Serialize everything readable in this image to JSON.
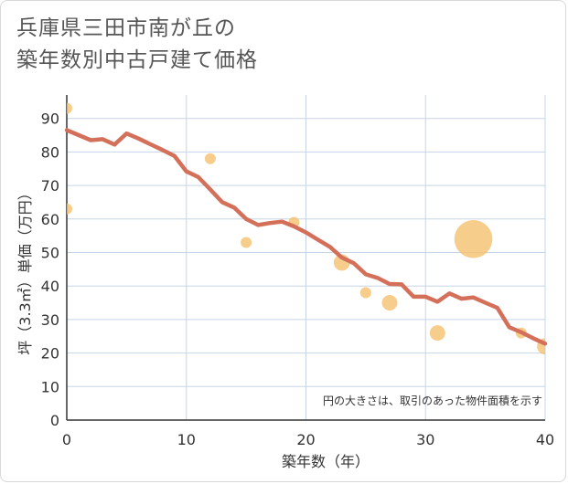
{
  "title_line1": "兵庫県三田市南が丘の",
  "title_line2": "築年数別中古戸建て価格",
  "chart_data": {
    "type": "scatter+line",
    "xlabel": "築年数（年）",
    "ylabel": "坪（3.3㎡）単価（万円）",
    "xlim": [
      0,
      40
    ],
    "ylim": [
      0,
      97
    ],
    "xticks": [
      0,
      10,
      20,
      30,
      40
    ],
    "yticks": [
      0,
      10,
      20,
      30,
      40,
      50,
      60,
      70,
      80,
      90
    ],
    "grid": true,
    "annotation": "円の大きさは、取引のあった物件面積を示す",
    "colors": {
      "line": "#d4705a",
      "bubble": "#f5c16e",
      "grid": "#c5d5e6"
    },
    "series": [
      {
        "name": "trend",
        "kind": "line",
        "points": [
          [
            0,
            86.5
          ],
          [
            1,
            85
          ],
          [
            2,
            83.5
          ],
          [
            3,
            83.8
          ],
          [
            4,
            82.2
          ],
          [
            5,
            85.5
          ],
          [
            6,
            84
          ],
          [
            7,
            82.3
          ],
          [
            8,
            80.6
          ],
          [
            9,
            78.8
          ],
          [
            10,
            74.2
          ],
          [
            11,
            72.5
          ],
          [
            12,
            68.8
          ],
          [
            13,
            65
          ],
          [
            14,
            63.4
          ],
          [
            15,
            60
          ],
          [
            16,
            58.2
          ],
          [
            17,
            58.8
          ],
          [
            18,
            59.2
          ],
          [
            19,
            57.8
          ],
          [
            20,
            56
          ],
          [
            21,
            53.8
          ],
          [
            22,
            51.7
          ],
          [
            23,
            48.5
          ],
          [
            24,
            46.8
          ],
          [
            25,
            43.5
          ],
          [
            26,
            42.4
          ],
          [
            27,
            40.6
          ],
          [
            28,
            40.5
          ],
          [
            29,
            36.8
          ],
          [
            30,
            36.8
          ],
          [
            31,
            35.3
          ],
          [
            32,
            37.8
          ],
          [
            33,
            36.2
          ],
          [
            34,
            36.6
          ],
          [
            35,
            35
          ],
          [
            36,
            33.5
          ],
          [
            37,
            27.7
          ],
          [
            38,
            26.2
          ],
          [
            39,
            24.4
          ],
          [
            40,
            22.8
          ]
        ]
      },
      {
        "name": "transactions",
        "kind": "bubble",
        "points": [
          {
            "x": 0,
            "y": 93,
            "size": 1
          },
          {
            "x": 0,
            "y": 63,
            "size": 1
          },
          {
            "x": 12,
            "y": 78,
            "size": 1
          },
          {
            "x": 15,
            "y": 53,
            "size": 1
          },
          {
            "x": 19,
            "y": 59,
            "size": 1
          },
          {
            "x": 23,
            "y": 47,
            "size": 2.2
          },
          {
            "x": 25,
            "y": 38,
            "size": 1
          },
          {
            "x": 27,
            "y": 35,
            "size": 2
          },
          {
            "x": 31,
            "y": 26,
            "size": 2
          },
          {
            "x": 34,
            "y": 54,
            "size": 12
          },
          {
            "x": 38,
            "y": 26,
            "size": 1
          },
          {
            "x": 40,
            "y": 22,
            "size": 2.2
          }
        ]
      }
    ]
  }
}
